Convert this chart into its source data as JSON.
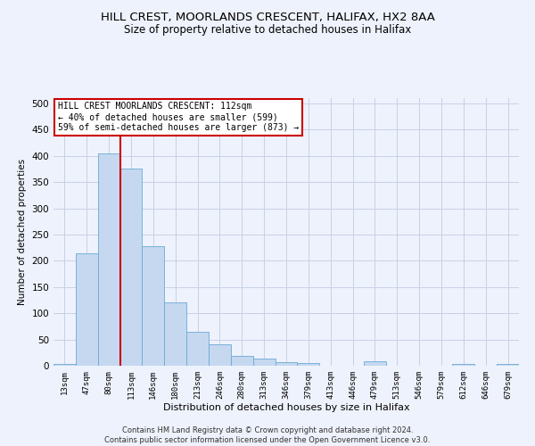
{
  "title1": "HILL CREST, MOORLANDS CRESCENT, HALIFAX, HX2 8AA",
  "title2": "Size of property relative to detached houses in Halifax",
  "xlabel": "Distribution of detached houses by size in Halifax",
  "ylabel": "Number of detached properties",
  "bar_color": "#c5d8f0",
  "bar_edge_color": "#6aaad4",
  "grid_color": "#c8d0e8",
  "marker_line_color": "#cc0000",
  "categories": [
    "13sqm",
    "47sqm",
    "80sqm",
    "113sqm",
    "146sqm",
    "180sqm",
    "213sqm",
    "246sqm",
    "280sqm",
    "313sqm",
    "346sqm",
    "379sqm",
    "413sqm",
    "446sqm",
    "479sqm",
    "513sqm",
    "546sqm",
    "579sqm",
    "612sqm",
    "646sqm",
    "679sqm"
  ],
  "values": [
    4,
    215,
    405,
    375,
    228,
    120,
    65,
    40,
    18,
    13,
    7,
    5,
    0,
    0,
    8,
    0,
    0,
    0,
    3,
    0,
    3
  ],
  "ylim": [
    0,
    510
  ],
  "yticks": [
    0,
    50,
    100,
    150,
    200,
    250,
    300,
    350,
    400,
    450,
    500
  ],
  "annotation_text": "HILL CREST MOORLANDS CRESCENT: 112sqm\n← 40% of detached houses are smaller (599)\n59% of semi-detached houses are larger (873) →",
  "annotation_box_color": "#ffffff",
  "annotation_box_edge": "#cc0000",
  "footnote": "Contains HM Land Registry data © Crown copyright and database right 2024.\nContains public sector information licensed under the Open Government Licence v3.0.",
  "bg_color": "#eef2fc"
}
